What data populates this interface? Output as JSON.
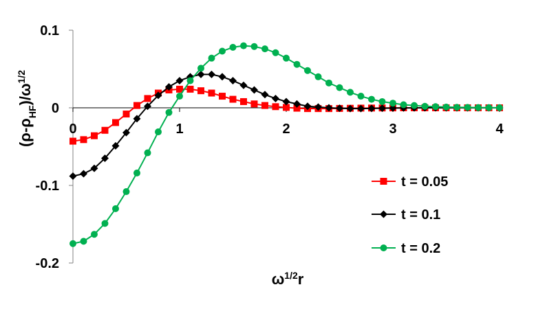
{
  "chart_data": {
    "type": "line",
    "title": "",
    "xlabel_parts": [
      {
        "text": "ω",
        "sup": false
      },
      {
        "text": "1/2",
        "sup": true
      },
      {
        "text": "r",
        "sup": false
      }
    ],
    "ylabel_parts": [
      {
        "text": "(ρ-ρ",
        "sub": false,
        "sup": false
      },
      {
        "text": "HF",
        "sub": true,
        "sup": false
      },
      {
        "text": ")/ω",
        "sub": false,
        "sup": false
      },
      {
        "text": "1/2",
        "sub": false,
        "sup": true
      }
    ],
    "xlim": [
      0,
      4
    ],
    "ylim": [
      -0.2,
      0.1
    ],
    "xticks": [
      0,
      1,
      2,
      3,
      4
    ],
    "xtick_labels": [
      "0",
      "1",
      "2",
      "3",
      "4"
    ],
    "yticks": [
      0.1,
      0,
      -0.1,
      -0.2
    ],
    "ytick_labels": [
      "0.1",
      "0",
      "-0.1",
      "-0.2"
    ],
    "grid": false,
    "legend_position": "right",
    "x": [
      0,
      0.1,
      0.2,
      0.3,
      0.4,
      0.5,
      0.6,
      0.7,
      0.8,
      0.9,
      1.0,
      1.1,
      1.2,
      1.3,
      1.4,
      1.5,
      1.6,
      1.7,
      1.8,
      1.9,
      2.0,
      2.1,
      2.2,
      2.3,
      2.4,
      2.5,
      2.6,
      2.7,
      2.8,
      2.9,
      3.0,
      3.1,
      3.2,
      3.3,
      3.4,
      3.5,
      3.6,
      3.7,
      3.8,
      3.9,
      4.0
    ],
    "series": [
      {
        "name": "t = 0.05",
        "color": "#ff0000",
        "marker": "square",
        "values": [
          -0.043,
          -0.041,
          -0.036,
          -0.029,
          -0.019,
          -0.008,
          0.003,
          0.012,
          0.019,
          0.023,
          0.024,
          0.024,
          0.022,
          0.019,
          0.015,
          0.011,
          0.008,
          0.005,
          0.003,
          0.0015,
          0.0005,
          -0.0005,
          -0.001,
          -0.001,
          -0.001,
          -0.0008,
          -0.0006,
          -0.0004,
          -0.0003,
          -0.0002,
          -0.0001,
          0.0,
          0.0,
          0.0,
          0.0,
          0.0,
          0.0,
          0.0,
          0.0,
          0.0,
          0.0
        ]
      },
      {
        "name": "t = 0.1",
        "color": "#000000",
        "marker": "diamond",
        "values": [
          -0.088,
          -0.085,
          -0.078,
          -0.065,
          -0.049,
          -0.032,
          -0.014,
          0.002,
          0.016,
          0.027,
          0.035,
          0.04,
          0.043,
          0.043,
          0.04,
          0.035,
          0.029,
          0.023,
          0.017,
          0.012,
          0.008,
          0.005,
          0.002,
          0.001,
          0.0,
          -0.0005,
          -0.001,
          -0.001,
          -0.0008,
          -0.0005,
          -0.0003,
          -0.0002,
          -0.0001,
          0.0,
          0.0,
          0.0,
          0.0,
          0.0,
          0.0,
          0.0,
          0.0
        ]
      },
      {
        "name": "t = 0.2",
        "color": "#00b050",
        "marker": "circle",
        "values": [
          -0.175,
          -0.172,
          -0.163,
          -0.149,
          -0.13,
          -0.108,
          -0.084,
          -0.058,
          -0.031,
          -0.006,
          0.015,
          0.035,
          0.051,
          0.064,
          0.073,
          0.078,
          0.08,
          0.079,
          0.076,
          0.071,
          0.064,
          0.056,
          0.048,
          0.04,
          0.032,
          0.026,
          0.02,
          0.015,
          0.011,
          0.008,
          0.006,
          0.004,
          0.003,
          0.002,
          0.0015,
          0.001,
          0.0007,
          0.0005,
          0.0003,
          0.0002,
          0.0001
        ]
      }
    ]
  }
}
